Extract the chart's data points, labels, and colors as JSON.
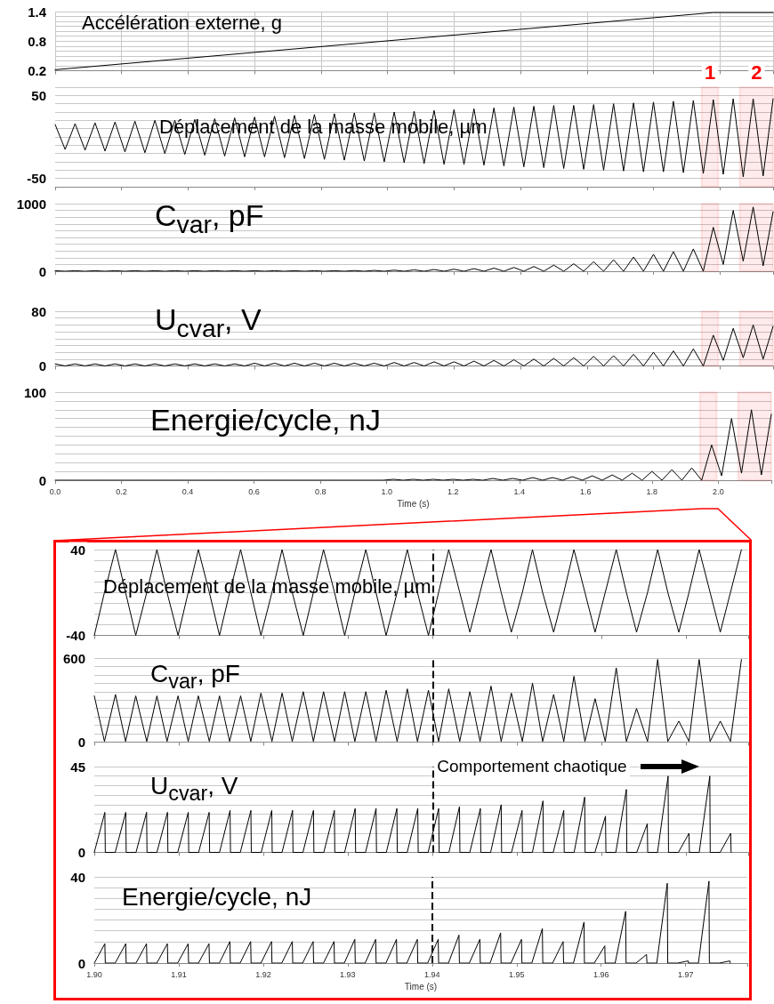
{
  "chart_data": [
    {
      "type": "line",
      "title": "Accélération externe, g",
      "x": [
        0,
        1.98,
        2.16
      ],
      "values": [
        0.22,
        1.38,
        1.38
      ],
      "color": "#000000",
      "xlim": [
        0,
        2.16
      ],
      "ylim": [
        0.2,
        1.4
      ],
      "xticks": [
        0,
        0.2,
        0.4,
        0.6,
        0.8,
        1,
        1.2,
        1.4,
        1.6,
        1.8,
        2
      ],
      "yticks": [
        0.2,
        {
          "value": 0.3,
          "label": null
        },
        {
          "value": 0.4,
          "label": null
        },
        {
          "value": 0.5,
          "label": null
        },
        {
          "value": 0.6,
          "label": null
        },
        {
          "value": 0.7,
          "label": null
        },
        0.8,
        {
          "value": 0.9,
          "label": null
        },
        {
          "value": 1.0,
          "label": null
        },
        {
          "value": 1.1,
          "label": null
        },
        {
          "value": 1.2,
          "label": null
        },
        {
          "value": 1.3,
          "label": null
        },
        1.4
      ],
      "grid": true,
      "tick_labels": "y"
    },
    {
      "type": "line",
      "title": "Déplacement de la masse mobile, µm",
      "color": "#000000",
      "xlim": [
        0,
        2.16
      ],
      "ylim": [
        -60,
        60
      ],
      "x": [
        0,
        0.03,
        0.06,
        0.09,
        0.12,
        0.15,
        0.18,
        0.21,
        0.24,
        0.27,
        0.3,
        0.33,
        0.36,
        0.39,
        0.42,
        0.45,
        0.48,
        0.51,
        0.54,
        0.57,
        0.6,
        0.63,
        0.66,
        0.69,
        0.72,
        0.75,
        0.78,
        0.81,
        0.84,
        0.87,
        0.9,
        0.93,
        0.96,
        0.99,
        1.02,
        1.05,
        1.08,
        1.11,
        1.14,
        1.17,
        1.2,
        1.23,
        1.26,
        1.29,
        1.32,
        1.35,
        1.38,
        1.41,
        1.44,
        1.47,
        1.5,
        1.53,
        1.56,
        1.59,
        1.62,
        1.65,
        1.68,
        1.71,
        1.74,
        1.77,
        1.8,
        1.83,
        1.86,
        1.89,
        1.92,
        1.95,
        1.98,
        2.01,
        2.04,
        2.07,
        2.1,
        2.13,
        2.16
      ],
      "values": [
        15,
        -15,
        16,
        -16,
        17,
        -17,
        18,
        -18,
        19,
        -19,
        20,
        -20,
        20,
        -21,
        21,
        -22,
        22,
        -23,
        23,
        -24,
        24,
        -24,
        25,
        -25,
        26,
        -26,
        27,
        -27,
        28,
        -28,
        29,
        -29,
        29,
        -30,
        30,
        -31,
        31,
        -32,
        32,
        -33,
        33,
        -33,
        34,
        -34,
        35,
        -35,
        36,
        -36,
        37,
        -37,
        38,
        -38,
        38,
        -39,
        39,
        -40,
        40,
        -41,
        41,
        -42,
        42,
        -42,
        43,
        -43,
        44,
        -44,
        45,
        -45,
        46,
        -48,
        46,
        -47,
        46
      ],
      "xticks": [
        0,
        0.2,
        0.4,
        0.6,
        0.8,
        1,
        1.2,
        1.4,
        1.6,
        1.8,
        2
      ],
      "yticks": [
        {
          "value": -60,
          "label": null
        },
        -50,
        {
          "value": -40,
          "label": null
        },
        {
          "value": -30,
          "label": null
        },
        {
          "value": -20,
          "label": null
        },
        {
          "value": -10,
          "label": null
        },
        {
          "value": 0,
          "label": null
        },
        {
          "value": 10,
          "label": null
        },
        {
          "value": 20,
          "label": null
        },
        {
          "value": 30,
          "label": null
        },
        {
          "value": 40,
          "label": null
        },
        50,
        {
          "value": 60,
          "label": null
        }
      ],
      "bands": [
        {
          "axis": "x",
          "from": 1.945,
          "to": 1.995,
          "label": "1",
          "color": "#ff0000"
        },
        {
          "axis": "x",
          "from": 2.06,
          "to": 2.16,
          "label": "2",
          "color": "#ff0000"
        }
      ],
      "grid": "y",
      "tick_labels": "y"
    },
    {
      "type": "line",
      "title": "C$_{var}$, pF",
      "color": "#000000",
      "xlim": [
        0,
        2.16
      ],
      "ylim": [
        0,
        1000
      ],
      "x": [
        0,
        0.03,
        0.06,
        0.09,
        0.12,
        0.15,
        0.18,
        0.21,
        0.24,
        0.27,
        0.3,
        0.33,
        0.36,
        0.39,
        0.42,
        0.45,
        0.48,
        0.51,
        0.54,
        0.57,
        0.6,
        0.63,
        0.66,
        0.69,
        0.72,
        0.75,
        0.78,
        0.81,
        0.84,
        0.87,
        0.9,
        0.93,
        0.96,
        0.99,
        1.02,
        1.05,
        1.08,
        1.11,
        1.14,
        1.17,
        1.2,
        1.23,
        1.26,
        1.29,
        1.32,
        1.35,
        1.38,
        1.41,
        1.44,
        1.47,
        1.5,
        1.53,
        1.56,
        1.59,
        1.62,
        1.65,
        1.68,
        1.71,
        1.74,
        1.77,
        1.8,
        1.83,
        1.86,
        1.89,
        1.92,
        1.95,
        1.98,
        2.01,
        2.04,
        2.07,
        2.1,
        2.13,
        2.16
      ],
      "values": [
        8,
        0,
        8,
        0,
        8,
        0,
        8,
        0,
        8,
        0,
        8,
        0,
        8,
        0,
        8,
        0,
        8,
        0,
        8,
        0,
        8,
        0,
        8,
        0,
        8,
        0,
        8,
        0,
        8,
        0,
        10,
        0,
        12,
        0,
        16,
        0,
        20,
        0,
        25,
        0,
        30,
        0,
        38,
        0,
        46,
        0,
        56,
        0,
        70,
        0,
        90,
        0,
        110,
        0,
        140,
        0,
        170,
        0,
        210,
        0,
        250,
        0,
        290,
        0,
        330,
        0,
        650,
        100,
        900,
        150,
        950,
        80,
        880
      ],
      "xticks": [
        0,
        0.2,
        0.4,
        0.6,
        0.8,
        1,
        1.2,
        1.4,
        1.6,
        1.8,
        2
      ],
      "yticks": [
        0,
        {
          "value": 100,
          "label": null
        },
        {
          "value": 200,
          "label": null
        },
        {
          "value": 300,
          "label": null
        },
        {
          "value": 400,
          "label": null
        },
        {
          "value": 500,
          "label": null
        },
        {
          "value": 600,
          "label": null
        },
        {
          "value": 700,
          "label": null
        },
        {
          "value": 800,
          "label": null
        },
        {
          "value": 900,
          "label": null
        },
        1000
      ],
      "bands": [
        {
          "axis": "x",
          "from": 1.945,
          "to": 1.995,
          "color": "#ff0000"
        },
        {
          "axis": "x",
          "from": 2.06,
          "to": 2.16,
          "color": "#ff0000"
        }
      ],
      "grid": "y",
      "tick_labels": "y"
    },
    {
      "type": "line",
      "title": "U$_{cvar}$, V",
      "color": "#000000",
      "xlim": [
        0,
        2.16
      ],
      "ylim": [
        0,
        80
      ],
      "x": [
        0,
        0.03,
        0.06,
        0.09,
        0.12,
        0.15,
        0.18,
        0.21,
        0.24,
        0.27,
        0.3,
        0.33,
        0.36,
        0.39,
        0.42,
        0.45,
        0.48,
        0.51,
        0.54,
        0.57,
        0.6,
        0.63,
        0.66,
        0.69,
        0.72,
        0.75,
        0.78,
        0.81,
        0.84,
        0.87,
        0.9,
        0.93,
        0.96,
        0.99,
        1.02,
        1.05,
        1.08,
        1.11,
        1.14,
        1.17,
        1.2,
        1.23,
        1.26,
        1.29,
        1.32,
        1.35,
        1.38,
        1.41,
        1.44,
        1.47,
        1.5,
        1.53,
        1.56,
        1.59,
        1.62,
        1.65,
        1.68,
        1.71,
        1.74,
        1.77,
        1.8,
        1.83,
        1.86,
        1.89,
        1.92,
        1.95,
        1.98,
        2.01,
        2.04,
        2.07,
        2.1,
        2.13,
        2.16
      ],
      "values": [
        3,
        0,
        3,
        0,
        3,
        0,
        3,
        0,
        3,
        0,
        3,
        0,
        3,
        0,
        3,
        0,
        3,
        0,
        3,
        0,
        4,
        0,
        4,
        0,
        4,
        0,
        4,
        0,
        4,
        0,
        4,
        0,
        4,
        0,
        5,
        0,
        5,
        0,
        6,
        0,
        6,
        0,
        7,
        0,
        8,
        0,
        9,
        0,
        10,
        0,
        11,
        0,
        12,
        0,
        14,
        0,
        15,
        0,
        17,
        0,
        20,
        0,
        22,
        0,
        25,
        0,
        45,
        8,
        55,
        12,
        60,
        10,
        58
      ],
      "xticks": [
        0,
        0.2,
        0.4,
        0.6,
        0.8,
        1,
        1.2,
        1.4,
        1.6,
        1.8,
        2
      ],
      "yticks": [
        0,
        {
          "value": 10,
          "label": null
        },
        {
          "value": 20,
          "label": null
        },
        {
          "value": 30,
          "label": null
        },
        {
          "value": 40,
          "label": null
        },
        {
          "value": 50,
          "label": null
        },
        {
          "value": 60,
          "label": null
        },
        {
          "value": 70,
          "label": null
        },
        80
      ],
      "bands": [
        {
          "axis": "x",
          "from": 1.945,
          "to": 1.995,
          "color": "#ff0000"
        },
        {
          "axis": "x",
          "from": 2.06,
          "to": 2.16,
          "color": "#ff0000"
        }
      ],
      "grid": "y",
      "tick_labels": "y"
    },
    {
      "type": "line",
      "title": "Energie/cycle, nJ",
      "xlabel": "Time (s)",
      "color": "#000000",
      "xlim": [
        0,
        2.16
      ],
      "ylim": [
        0,
        100
      ],
      "x": [
        0,
        0.03,
        0.06,
        0.09,
        0.12,
        0.15,
        0.18,
        0.21,
        0.24,
        0.27,
        0.3,
        0.33,
        0.36,
        0.39,
        0.42,
        0.45,
        0.48,
        0.51,
        0.54,
        0.57,
        0.6,
        0.63,
        0.66,
        0.69,
        0.72,
        0.75,
        0.78,
        0.81,
        0.84,
        0.87,
        0.9,
        0.93,
        0.96,
        0.99,
        1.02,
        1.05,
        1.08,
        1.11,
        1.14,
        1.17,
        1.2,
        1.23,
        1.26,
        1.29,
        1.32,
        1.35,
        1.38,
        1.41,
        1.44,
        1.47,
        1.5,
        1.53,
        1.56,
        1.59,
        1.62,
        1.65,
        1.68,
        1.71,
        1.74,
        1.77,
        1.8,
        1.83,
        1.86,
        1.89,
        1.92,
        1.95,
        1.98,
        2.01,
        2.04,
        2.07,
        2.1,
        2.13,
        2.16
      ],
      "values": [
        0,
        0,
        0,
        0,
        0,
        0,
        0,
        0,
        0,
        0,
        0,
        0,
        0,
        0,
        0,
        0,
        0,
        0,
        0,
        0,
        0,
        0,
        0,
        0,
        0,
        0,
        0,
        0,
        0,
        0,
        0,
        0,
        0,
        0,
        1,
        0,
        1,
        0,
        1,
        0,
        1,
        0,
        1,
        0,
        2,
        0,
        2,
        0,
        3,
        0,
        3,
        0,
        4,
        0,
        5,
        0,
        6,
        0,
        8,
        0,
        10,
        0,
        12,
        0,
        14,
        0,
        40,
        5,
        70,
        8,
        80,
        6,
        75
      ],
      "xticks": [
        {
          "value": 0,
          "label": "0.0"
        },
        0.2,
        0.4,
        0.6,
        0.8,
        {
          "value": 1,
          "label": "1.0"
        },
        1.2,
        1.4,
        1.6,
        1.8,
        {
          "value": 2,
          "label": "2.0"
        }
      ],
      "yticks": [
        0,
        {
          "value": 10,
          "label": null
        },
        {
          "value": 20,
          "label": null
        },
        {
          "value": 30,
          "label": null
        },
        {
          "value": 40,
          "label": null
        },
        {
          "value": 50,
          "label": null
        },
        {
          "value": 60,
          "label": null
        },
        {
          "value": 70,
          "label": null
        },
        {
          "value": 80,
          "label": null
        },
        {
          "value": 90,
          "label": null
        },
        100
      ],
      "bands": [
        {
          "axis": "x",
          "from": 1.945,
          "to": 1.995,
          "color": "#ff0000"
        },
        {
          "axis": "x",
          "from": 2.06,
          "to": 2.16,
          "color": "#ff0000"
        }
      ],
      "grid": "y"
    },
    {
      "type": "line",
      "title": "Déplacement de la masse mobile, µm",
      "color": "#000000",
      "xlim": [
        1.9,
        1.9773
      ],
      "ylim": [
        -40,
        40
      ],
      "x": [
        1.9,
        1.9012,
        1.9025,
        1.9037,
        1.9049,
        1.9062,
        1.9074,
        1.9086,
        1.9099,
        1.9111,
        1.9123,
        1.9136,
        1.9148,
        1.916,
        1.9173,
        1.9185,
        1.9197,
        1.921,
        1.9222,
        1.9234,
        1.9247,
        1.9259,
        1.9271,
        1.9284,
        1.9296,
        1.9308,
        1.9321,
        1.9333,
        1.9345,
        1.9358,
        1.937,
        1.9382,
        1.9395,
        1.9407,
        1.9419,
        1.9432,
        1.9444,
        1.9456,
        1.9469,
        1.9481,
        1.9493,
        1.9506,
        1.9518,
        1.953,
        1.9543,
        1.9555,
        1.9567,
        1.958,
        1.9592,
        1.9604,
        1.9617,
        1.9629,
        1.9641,
        1.9654,
        1.9666,
        1.9678,
        1.9691,
        1.9703,
        1.9715,
        1.9728,
        1.974,
        1.9752,
        1.9765
      ],
      "values": [
        -40,
        0,
        40,
        0,
        -40,
        0,
        40,
        0,
        -40,
        0,
        40,
        0,
        -40,
        0,
        40,
        0,
        -40,
        0,
        40,
        0,
        -40,
        0,
        40,
        0,
        -40,
        0,
        40,
        0,
        -40,
        0,
        40,
        0,
        -40,
        0,
        40,
        0,
        -37,
        0,
        40,
        0,
        -37,
        0,
        40,
        0,
        -37,
        0,
        40,
        0,
        -37,
        0,
        40,
        0,
        -37,
        0,
        40,
        0,
        -37,
        0,
        40,
        0,
        -37,
        0,
        40
      ],
      "xticks": [
        1.9,
        1.91,
        1.92,
        1.93,
        1.94,
        1.95,
        1.96,
        1.97
      ],
      "yticks": [
        -40,
        {
          "value": -30,
          "label": null
        },
        {
          "value": -20,
          "label": null
        },
        {
          "value": -10,
          "label": null
        },
        {
          "value": 0,
          "label": null
        },
        {
          "value": 10,
          "label": null
        },
        {
          "value": 20,
          "label": null
        },
        {
          "value": 30,
          "label": null
        },
        40
      ],
      "ref_lines": [
        {
          "axis": "x",
          "value": 1.94,
          "color": "#000000",
          "line_style": "dashed"
        }
      ],
      "grid": "y",
      "tick_labels": "y"
    },
    {
      "type": "line",
      "title": "C$_{var}$, pF",
      "color": "#000000",
      "xlim": [
        1.9,
        1.9773
      ],
      "ylim": [
        0,
        600
      ],
      "x": [
        1.9,
        1.9012,
        1.9025,
        1.9037,
        1.9049,
        1.9062,
        1.9074,
        1.9086,
        1.9099,
        1.9111,
        1.9123,
        1.9136,
        1.9148,
        1.916,
        1.9173,
        1.9185,
        1.9197,
        1.921,
        1.9222,
        1.9234,
        1.9247,
        1.9259,
        1.9271,
        1.9284,
        1.9296,
        1.9308,
        1.9321,
        1.9333,
        1.9345,
        1.9358,
        1.937,
        1.9382,
        1.9395,
        1.9407,
        1.9419,
        1.9432,
        1.9444,
        1.9456,
        1.9469,
        1.9481,
        1.9493,
        1.9506,
        1.9518,
        1.953,
        1.9543,
        1.9555,
        1.9567,
        1.958,
        1.9592,
        1.9604,
        1.9617,
        1.9629,
        1.9641,
        1.9654,
        1.9666,
        1.9678,
        1.9691,
        1.9703,
        1.9715,
        1.9728,
        1.974,
        1.9752,
        1.9765
      ],
      "values": [
        330,
        5,
        340,
        5,
        330,
        5,
        330,
        5,
        330,
        5,
        330,
        5,
        330,
        5,
        330,
        5,
        350,
        5,
        350,
        5,
        360,
        5,
        360,
        5,
        360,
        5,
        360,
        5,
        370,
        5,
        380,
        5,
        370,
        5,
        380,
        5,
        360,
        5,
        400,
        5,
        350,
        5,
        420,
        5,
        340,
        5,
        470,
        5,
        310,
        5,
        530,
        5,
        240,
        5,
        590,
        5,
        150,
        5,
        590,
        5,
        150,
        5,
        590
      ],
      "xticks": [
        1.9,
        1.91,
        1.92,
        1.93,
        1.94,
        1.95,
        1.96,
        1.97
      ],
      "yticks": [
        0,
        {
          "value": 60,
          "label": null
        },
        {
          "value": 120,
          "label": null
        },
        {
          "value": 180,
          "label": null
        },
        {
          "value": 240,
          "label": null
        },
        {
          "value": 300,
          "label": null
        },
        {
          "value": 360,
          "label": null
        },
        {
          "value": 420,
          "label": null
        },
        {
          "value": 480,
          "label": null
        },
        {
          "value": 540,
          "label": null
        },
        600
      ],
      "ref_lines": [
        {
          "axis": "x",
          "value": 1.94,
          "color": "#000000",
          "line_style": "dashed"
        }
      ],
      "grid": "y",
      "tick_labels": "y"
    },
    {
      "type": "line",
      "title": "U$_{cvar}$, V",
      "color": "#000000",
      "xlim": [
        1.9,
        1.9773
      ],
      "ylim": [
        0,
        45
      ],
      "x": [
        1.9,
        1.90125,
        1.9013,
        1.90247,
        1.90372,
        1.90377,
        1.90493,
        1.90618,
        1.90623,
        1.9074,
        1.90865,
        1.9087,
        1.90986,
        1.91111,
        1.91116,
        1.91233,
        1.91358,
        1.91363,
        1.9148,
        1.91605,
        1.9161,
        1.91726,
        1.91851,
        1.91856,
        1.91973,
        1.92098,
        1.92103,
        1.92219,
        1.92344,
        1.92349,
        1.92466,
        1.92591,
        1.92596,
        1.92713,
        1.92838,
        1.92843,
        1.92959,
        1.93084,
        1.93089,
        1.93206,
        1.93331,
        1.93336,
        1.93452,
        1.93577,
        1.93582,
        1.93699,
        1.93824,
        1.93829,
        1.93946,
        1.94071,
        1.94076,
        1.94192,
        1.94317,
        1.94322,
        1.94439,
        1.94564,
        1.94569,
        1.94685,
        1.9481,
        1.94815,
        1.94932,
        1.95057,
        1.95062,
        1.95179,
        1.95304,
        1.95309,
        1.95425,
        1.9555,
        1.95555,
        1.95672,
        1.95797,
        1.95802,
        1.95918,
        1.96043,
        1.96048,
        1.96165,
        1.9629,
        1.96295,
        1.96412,
        1.96537,
        1.96542,
        1.96658,
        1.96783,
        1.96788,
        1.96905,
        1.9703,
        1.97035,
        1.97151,
        1.97276,
        1.97281,
        1.97398,
        1.97523,
        1.97528
      ],
      "values": [
        0,
        21,
        0,
        0,
        21,
        0,
        0,
        21,
        0,
        0,
        21,
        0,
        0,
        21,
        0,
        0,
        21,
        0,
        0,
        22,
        0,
        0,
        22,
        0,
        0,
        22,
        0,
        0,
        22,
        0,
        0,
        22,
        0,
        0,
        22,
        0,
        0,
        23,
        0,
        0,
        23,
        0,
        0,
        23,
        0,
        0,
        23,
        0,
        0,
        23,
        0,
        0,
        24,
        0,
        0,
        23,
        0,
        0,
        25,
        0,
        0,
        22,
        0,
        0,
        27,
        0,
        0,
        22,
        0,
        0,
        29,
        0,
        0,
        19,
        0,
        0,
        33,
        0,
        0,
        15,
        0,
        0,
        40,
        0,
        0,
        10,
        0,
        0,
        40,
        0,
        0,
        10,
        0
      ],
      "xticks": [
        1.9,
        1.91,
        1.92,
        1.93,
        1.94,
        1.95,
        1.96,
        1.97
      ],
      "yticks": [
        0,
        {
          "value": 5,
          "label": null
        },
        {
          "value": 10,
          "label": null
        },
        {
          "value": 15,
          "label": null
        },
        {
          "value": 20,
          "label": null
        },
        {
          "value": 25,
          "label": null
        },
        {
          "value": 30,
          "label": null
        },
        {
          "value": 35,
          "label": null
        },
        {
          "value": 40,
          "label": null
        },
        45
      ],
      "ref_lines": [
        {
          "axis": "x",
          "value": 1.94,
          "color": "#000000",
          "line_style": "dashed"
        }
      ],
      "annotations": [
        {
          "text": "Comportement chaotique",
          "x": 1.94,
          "y": 45
        }
      ],
      "grid": "y",
      "tick_labels": "y"
    },
    {
      "type": "line",
      "title": "Energie/cycle, nJ",
      "xlabel": "Time (s)",
      "color": "#000000",
      "xlim": [
        1.9,
        1.9773
      ],
      "ylim": [
        0,
        40
      ],
      "x": [
        1.9,
        1.90125,
        1.9013,
        1.90247,
        1.90372,
        1.90377,
        1.90493,
        1.90618,
        1.90623,
        1.9074,
        1.90865,
        1.9087,
        1.90986,
        1.91111,
        1.91116,
        1.91233,
        1.91358,
        1.91363,
        1.9148,
        1.91605,
        1.9161,
        1.91726,
        1.91851,
        1.91856,
        1.91973,
        1.92098,
        1.92103,
        1.92219,
        1.92344,
        1.92349,
        1.92466,
        1.92591,
        1.92596,
        1.92713,
        1.92838,
        1.92843,
        1.92959,
        1.93084,
        1.93089,
        1.93206,
        1.93331,
        1.93336,
        1.93452,
        1.93577,
        1.93582,
        1.93699,
        1.93824,
        1.93829,
        1.93946,
        1.94071,
        1.94076,
        1.94192,
        1.94317,
        1.94322,
        1.94439,
        1.94564,
        1.94569,
        1.94685,
        1.9481,
        1.94815,
        1.94932,
        1.95057,
        1.95062,
        1.95179,
        1.95304,
        1.95309,
        1.95425,
        1.9555,
        1.95555,
        1.95672,
        1.95797,
        1.95802,
        1.95918,
        1.96043,
        1.96048,
        1.96165,
        1.9629,
        1.96295,
        1.96412,
        1.96537,
        1.96542,
        1.96658,
        1.96783,
        1.96788,
        1.96905,
        1.9703,
        1.97035,
        1.97151,
        1.97276,
        1.97281,
        1.97398,
        1.97523,
        1.97528
      ],
      "values": [
        0,
        9,
        0,
        0,
        9,
        0,
        0,
        9,
        0,
        0,
        9,
        0,
        0,
        9,
        0,
        0,
        9,
        0,
        0,
        10,
        0,
        0,
        10,
        0,
        0,
        10,
        0,
        0,
        10,
        0,
        0,
        10,
        0,
        0,
        10,
        0,
        0,
        11,
        0,
        0,
        11,
        0,
        0,
        11,
        0,
        0,
        11,
        0,
        0,
        11,
        0,
        0,
        13,
        0,
        0,
        11,
        0,
        0,
        14,
        0,
        0,
        11,
        0,
        0,
        16,
        0,
        0,
        10,
        0,
        0,
        19,
        0,
        0,
        8,
        0,
        0,
        24,
        0,
        0,
        4,
        0,
        0,
        37,
        0,
        0,
        1,
        0,
        0,
        38,
        0,
        0,
        1,
        0
      ],
      "xticks": [
        {
          "value": 1.9,
          "label": "1.90"
        },
        1.91,
        1.92,
        1.93,
        1.94,
        1.95,
        1.96,
        1.97
      ],
      "yticks": [
        0,
        {
          "value": 5,
          "label": null
        },
        {
          "value": 10,
          "label": null
        },
        {
          "value": 15,
          "label": null
        },
        {
          "value": 20,
          "label": null
        },
        {
          "value": 25,
          "label": null
        },
        {
          "value": 30,
          "label": null
        },
        {
          "value": 35,
          "label": null
        },
        40
      ],
      "ref_lines": [
        {
          "axis": "x",
          "value": 1.94,
          "color": "#000000",
          "line_style": "dashed"
        }
      ],
      "grid": "y"
    }
  ]
}
